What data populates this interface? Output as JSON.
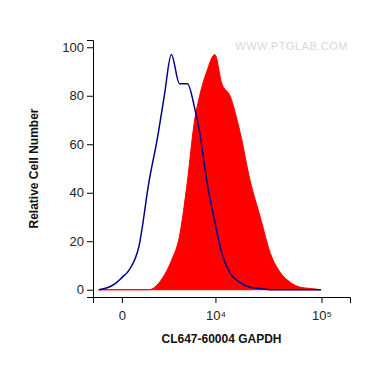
{
  "chart_data": {
    "type": "line",
    "x_label": "CL647-60004 GAPDH",
    "y_label": "Relative Cell Number",
    "annotations": [
      "WWW.PTGLAB.COM"
    ],
    "x": [
      -1050,
      -540,
      -190,
      0,
      270,
      730,
      1300,
      1840,
      2400,
      3040,
      3900,
      4900,
      5940,
      6770,
      8090,
      9850,
      11640,
      14040,
      17650,
      22050,
      27500,
      34200,
      42400,
      52400,
      64800,
      80100,
      98700
    ],
    "series": [
      {
        "type": "area",
        "color": "#ff0000",
        "values": [
          0,
          0,
          0,
          0,
          0,
          0,
          0,
          2,
          6,
          12,
          22,
          45,
          70,
          80,
          90,
          97,
          85,
          80,
          65,
          45,
          30,
          15,
          7,
          3,
          1,
          0.5,
          0
        ]
      },
      {
        "type": "line",
        "color": "#00008b",
        "values": [
          0,
          1,
          3,
          5,
          8,
          18,
          45,
          62,
          80,
          97,
          85,
          85,
          75,
          65,
          45,
          28,
          15,
          7,
          3,
          1,
          0.5,
          0,
          0,
          0,
          0,
          0,
          0
        ]
      }
    ],
    "xlim": [
      -1400,
      180000
    ],
    "xticks": [
      0,
      {
        "value": 10000,
        "label": "10⁴"
      },
      {
        "value": 100000,
        "label": "10⁵"
      }
    ],
    "ylim": [
      -3,
      103
    ],
    "yticks": [
      0,
      20,
      40,
      60,
      80,
      100
    ],
    "grid": false
  }
}
